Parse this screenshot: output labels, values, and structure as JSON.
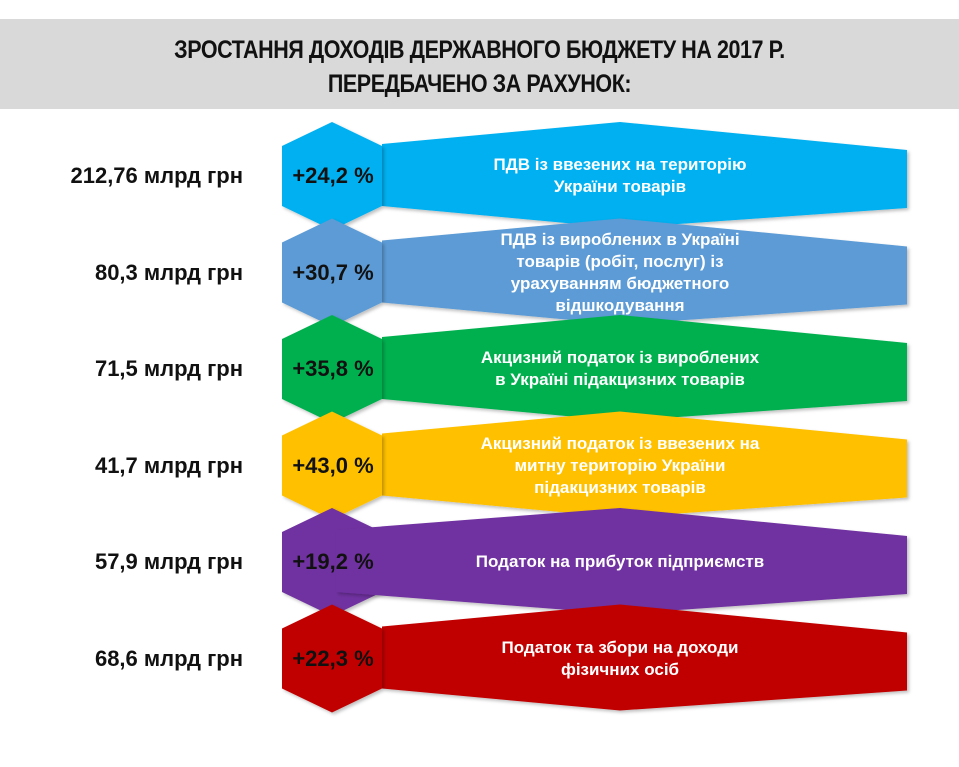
{
  "title": {
    "line1": "ЗРОСТАННЯ ДОХОДІВ ДЕРЖАВНОГО БЮДЖЕТУ НА 2017 Р.",
    "line2": "ПЕРЕДБАЧЕНО ЗА РАХУНОК:",
    "background": "#d9d9d9"
  },
  "rows": [
    {
      "amount": "212,76 млрд грн",
      "growth": "+24,2 %",
      "lines": [
        "ПДВ із ввезених на територію",
        "України товарів"
      ],
      "color": "#00b0f0"
    },
    {
      "amount": "80,3 млрд грн",
      "growth": "+30,7 %",
      "lines": [
        "ПДВ із вироблених в Україні",
        "товарів (робіт, послуг) із",
        "урахуванням бюджетного",
        "відшкодування"
      ],
      "color": "#5b9bd5"
    },
    {
      "amount": "71,5 млрд грн",
      "growth": "+35,8 %",
      "lines": [
        "Акцизний податок із вироблених",
        "в Україні підакцизних товарів"
      ],
      "color": "#00b050"
    },
    {
      "amount": "41,7 млрд грн",
      "growth": "+43,0 %",
      "lines": [
        "Акцизний податок із ввезених на",
        "митну територію України",
        "підакцизних товарів"
      ],
      "color": "#ffc000"
    },
    {
      "amount": "57,9 млрд грн",
      "growth": "+19,2 %",
      "lines": [
        "Податок на прибуток підприємств"
      ],
      "color": "#7030a0"
    },
    {
      "amount": "68,6 млрд грн",
      "growth": "+22,3 %",
      "lines": [
        "Податок та збори на доходи",
        "фізичних осіб"
      ],
      "color": "#c00000"
    }
  ]
}
